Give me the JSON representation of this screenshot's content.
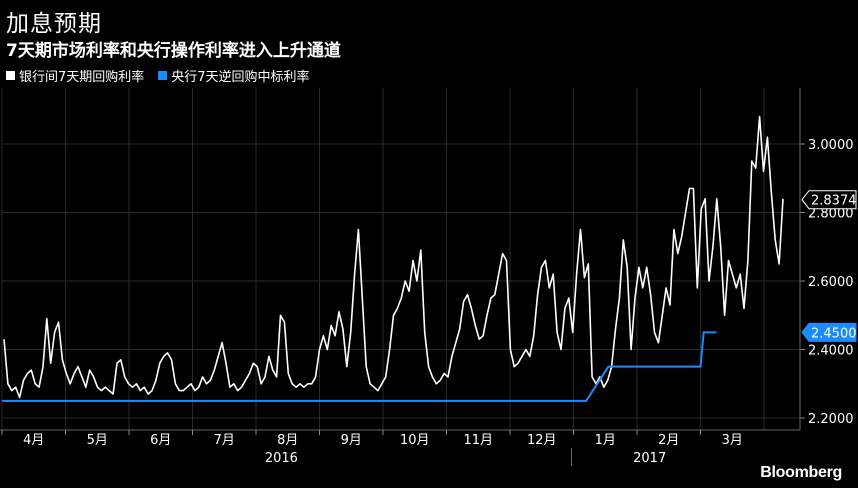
{
  "header": {
    "title": "加息预期",
    "subtitle": "7天期市场利率和央行操作利率进入上升通道"
  },
  "legend": {
    "items": [
      {
        "label": "银行间7天期回购利率",
        "color": "#ffffff"
      },
      {
        "label": "央行7天逆回购中标利率",
        "color": "#1a8cff"
      }
    ]
  },
  "brand": {
    "name": "Bloomberg"
  },
  "chart_data": {
    "type": "line",
    "ylim": [
      2.2,
      3.1
    ],
    "yticks": [
      {
        "value": 2.2,
        "label": "2.2000"
      },
      {
        "value": 2.4,
        "label": "2.4000"
      },
      {
        "value": 2.6,
        "label": "2.6000"
      },
      {
        "value": 2.8,
        "label": "2.8000"
      },
      {
        "value": 3.0,
        "label": "3.0000"
      }
    ],
    "months": [
      "4月",
      "5月",
      "6月",
      "7月",
      "8月",
      "9月",
      "10月",
      "11月",
      "12月",
      "1月",
      "2月",
      "3月"
    ],
    "years": [
      {
        "label": "2016",
        "month_index": 4.4
      },
      {
        "label": "2017",
        "month_index": 10.2
      }
    ],
    "grid": true,
    "legend_position": "top-left",
    "series": [
      {
        "name": "银行间7天期回购利率",
        "color": "#ffffff",
        "last_label": "2.8374",
        "values": [
          2.43,
          2.3,
          2.28,
          2.29,
          2.26,
          2.31,
          2.33,
          2.34,
          2.3,
          2.29,
          2.35,
          2.49,
          2.36,
          2.45,
          2.48,
          2.37,
          2.33,
          2.3,
          2.33,
          2.35,
          2.32,
          2.29,
          2.34,
          2.32,
          2.29,
          2.28,
          2.29,
          2.28,
          2.27,
          2.36,
          2.37,
          2.32,
          2.3,
          2.29,
          2.3,
          2.28,
          2.29,
          2.27,
          2.28,
          2.31,
          2.36,
          2.38,
          2.39,
          2.37,
          2.3,
          2.28,
          2.28,
          2.29,
          2.3,
          2.28,
          2.29,
          2.32,
          2.3,
          2.31,
          2.34,
          2.38,
          2.42,
          2.36,
          2.29,
          2.3,
          2.28,
          2.29,
          2.31,
          2.33,
          2.36,
          2.35,
          2.3,
          2.32,
          2.38,
          2.34,
          2.32,
          2.5,
          2.48,
          2.33,
          2.3,
          2.29,
          2.3,
          2.29,
          2.3,
          2.3,
          2.32,
          2.4,
          2.44,
          2.4,
          2.47,
          2.44,
          2.51,
          2.46,
          2.35,
          2.45,
          2.62,
          2.75,
          2.55,
          2.35,
          2.3,
          2.29,
          2.28,
          2.3,
          2.32,
          2.4,
          2.5,
          2.52,
          2.55,
          2.6,
          2.57,
          2.66,
          2.6,
          2.69,
          2.45,
          2.35,
          2.32,
          2.3,
          2.31,
          2.33,
          2.32,
          2.38,
          2.42,
          2.46,
          2.54,
          2.56,
          2.52,
          2.47,
          2.43,
          2.44,
          2.5,
          2.55,
          2.56,
          2.62,
          2.68,
          2.66,
          2.4,
          2.35,
          2.36,
          2.38,
          2.4,
          2.38,
          2.44,
          2.56,
          2.64,
          2.66,
          2.58,
          2.62,
          2.45,
          2.4,
          2.52,
          2.55,
          2.45,
          2.62,
          2.75,
          2.61,
          2.65,
          2.32,
          2.3,
          2.32,
          2.29,
          2.31,
          2.35,
          2.46,
          2.55,
          2.72,
          2.64,
          2.4,
          2.55,
          2.64,
          2.58,
          2.64,
          2.56,
          2.45,
          2.42,
          2.5,
          2.58,
          2.53,
          2.75,
          2.68,
          2.73,
          2.8,
          2.87,
          2.87,
          2.58,
          2.81,
          2.84,
          2.6,
          2.7,
          2.84,
          2.7,
          2.5,
          2.66,
          2.62,
          2.58,
          2.62,
          2.52,
          2.66,
          2.95,
          2.93,
          3.08,
          2.92,
          3.02,
          2.86,
          2.72,
          2.65,
          2.84
        ]
      },
      {
        "name": "央行7天逆回购中标利率",
        "color": "#1a8cff",
        "last_label": "2.4500",
        "steps": [
          {
            "month": 0.0,
            "value": 2.25
          },
          {
            "month": 9.2,
            "value": 2.25
          },
          {
            "month": 9.55,
            "value": 2.35
          },
          {
            "month": 11.0,
            "value": 2.35
          },
          {
            "month": 11.05,
            "value": 2.45
          },
          {
            "month": 11.25,
            "value": 2.45
          }
        ]
      }
    ]
  }
}
